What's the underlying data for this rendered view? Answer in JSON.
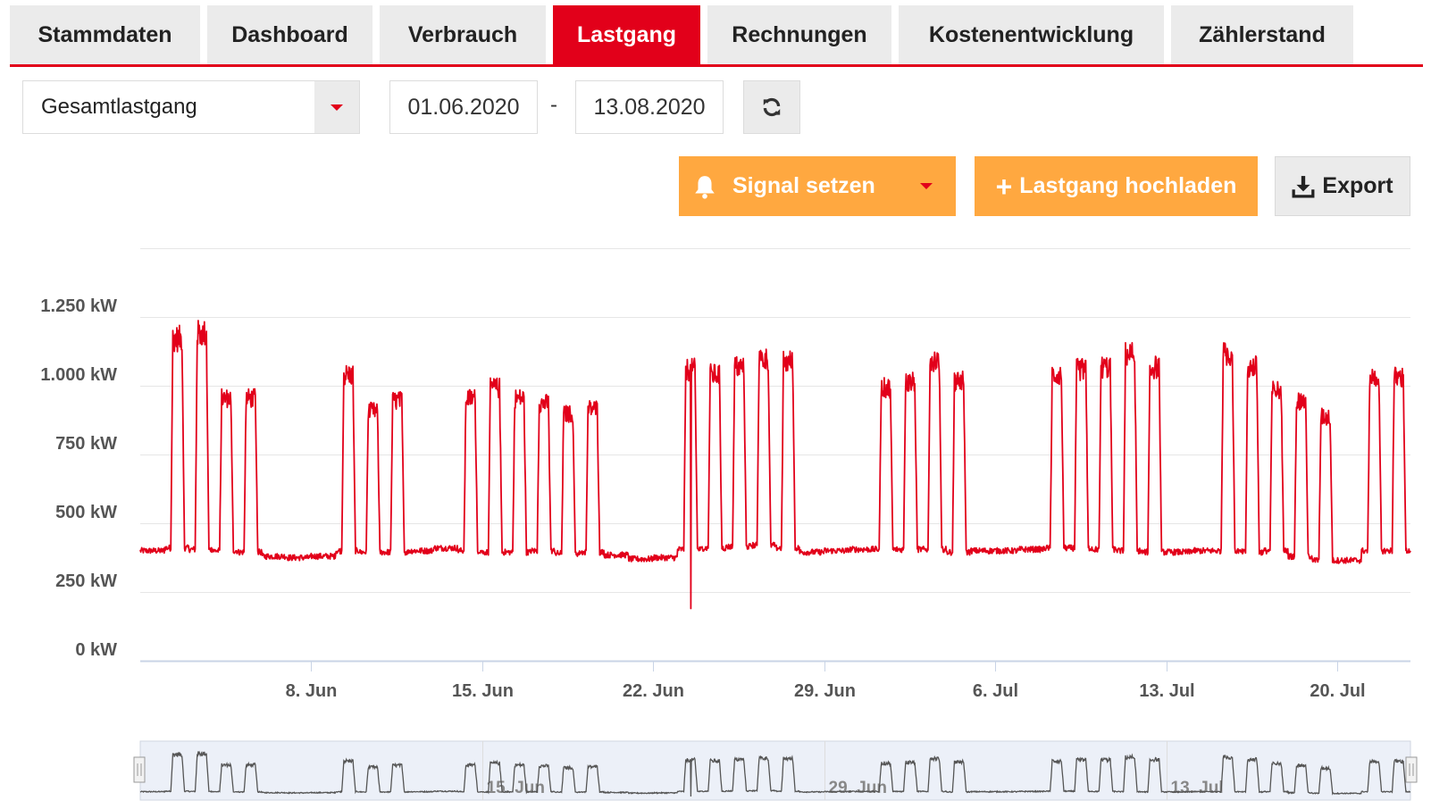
{
  "tabs": [
    {
      "label": "Stammdaten",
      "active": false
    },
    {
      "label": "Dashboard",
      "active": false
    },
    {
      "label": "Verbrauch",
      "active": false
    },
    {
      "label": "Lastgang",
      "active": true
    },
    {
      "label": "Rechnungen",
      "active": false
    },
    {
      "label": "Kostenentwicklung",
      "active": false
    },
    {
      "label": "Zählerstand",
      "active": false
    }
  ],
  "filters": {
    "series_select": "Gesamtlastgang",
    "date_from": "01.06.2020",
    "date_separator": "-",
    "date_to": "13.08.2020"
  },
  "actions": {
    "signal_label": "Signal setzen",
    "upload_label": "Lastgang hochladen",
    "export_label": "Export"
  },
  "colors": {
    "accent": "#e2001a",
    "orange": "#ffa840",
    "tab_bg": "#ebebeb",
    "grid": "#e6e6e6"
  },
  "icons": {
    "select_caret": "chevron-down-icon",
    "refresh": "refresh-icon",
    "signal": "bell-icon",
    "signal_caret": "chevron-down-icon",
    "upload": "plus-icon",
    "export": "download-icon"
  },
  "chart_data": {
    "type": "line",
    "title": "",
    "xlabel": "",
    "ylabel": "",
    "y_unit": "kW",
    "ylim": [
      0,
      1500
    ],
    "yticks": [
      0,
      250,
      500,
      750,
      1000,
      1250
    ],
    "ytick_labels": [
      "0 kW",
      "250 kW",
      "500 kW",
      "750 kW",
      "1.000 kW",
      "1.250 kW"
    ],
    "xlim": [
      "2020-06-01",
      "2020-07-23"
    ],
    "xticks": [
      "2020-06-08",
      "2020-06-15",
      "2020-06-22",
      "2020-06-29",
      "2020-07-06",
      "2020-07-13",
      "2020-07-20"
    ],
    "xtick_labels": [
      "8. Jun",
      "15. Jun",
      "22. Jun",
      "29. Jun",
      "6. Jul",
      "13. Jul",
      "20. Jul"
    ],
    "grid": true,
    "legend": "none",
    "series": [
      {
        "color": "#e2001a",
        "x": [
          "2020-06-01",
          "2020-06-02",
          "2020-06-03",
          "2020-06-04",
          "2020-06-05",
          "2020-06-06",
          "2020-06-07",
          "2020-06-08",
          "2020-06-09",
          "2020-06-10",
          "2020-06-11",
          "2020-06-12",
          "2020-06-13",
          "2020-06-14",
          "2020-06-15",
          "2020-06-16",
          "2020-06-17",
          "2020-06-18",
          "2020-06-19",
          "2020-06-20",
          "2020-06-21",
          "2020-06-22",
          "2020-06-23",
          "2020-06-24",
          "2020-06-25",
          "2020-06-26",
          "2020-06-27",
          "2020-06-28",
          "2020-06-29",
          "2020-06-30",
          "2020-07-01",
          "2020-07-02",
          "2020-07-03",
          "2020-07-04",
          "2020-07-05",
          "2020-07-06",
          "2020-07-07",
          "2020-07-08",
          "2020-07-09",
          "2020-07-10",
          "2020-07-11",
          "2020-07-12",
          "2020-07-13",
          "2020-07-14",
          "2020-07-15",
          "2020-07-16",
          "2020-07-17",
          "2020-07-18",
          "2020-07-19",
          "2020-07-20",
          "2020-07-21",
          "2020-07-22"
        ],
        "base_kw": [
          400,
          410,
          405,
          400,
          395,
          380,
          375,
          380,
          400,
          395,
          395,
          400,
          410,
          400,
          395,
          395,
          400,
          390,
          395,
          385,
          370,
          375,
          405,
          410,
          415,
          420,
          410,
          395,
          400,
          405,
          405,
          405,
          405,
          395,
          400,
          400,
          405,
          410,
          410,
          405,
          400,
          395,
          395,
          400,
          400,
          395,
          400,
          380,
          365,
          365,
          400,
          400
        ],
        "peak_kw": [
          0,
          1220,
          1240,
          990,
          990,
          0,
          0,
          0,
          1080,
          940,
          980,
          0,
          0,
          990,
          1030,
          990,
          970,
          930,
          950,
          0,
          0,
          0,
          1100,
          1080,
          1110,
          1140,
          1130,
          0,
          0,
          0,
          1030,
          1050,
          1140,
          1060,
          0,
          0,
          0,
          1080,
          1100,
          1110,
          1160,
          1110,
          0,
          0,
          1160,
          1110,
          1020,
          980,
          920,
          0,
          1070,
          1070
        ],
        "min_kw": [
          {
            "x": "2020-06-23",
            "y": 190
          }
        ]
      }
    ]
  },
  "navigator": {
    "xtick_labels": [
      "15. Jun",
      "29. Jun",
      "13. Jul"
    ]
  }
}
